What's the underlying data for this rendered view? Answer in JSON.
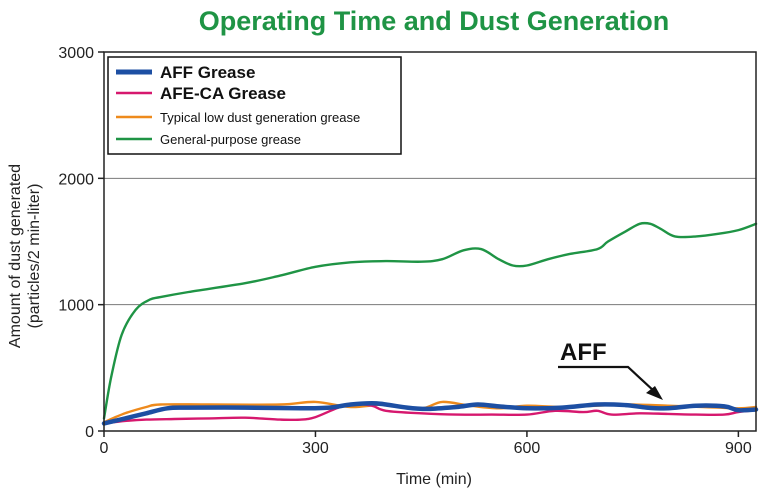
{
  "chart_data": {
    "type": "line",
    "title": "Operating Time and Dust Generation",
    "xlabel": "Time (min)",
    "ylabel_line1": "Amount of dust generated",
    "ylabel_line2": "(particles/2 min-liter)",
    "xlim": [
      0,
      925
    ],
    "ylim": [
      0,
      3000
    ],
    "xticks": [
      0,
      300,
      600,
      900
    ],
    "yticks": [
      0,
      1000,
      2000,
      3000
    ],
    "grid": "horizontal",
    "legend_position": "top-left",
    "annotation": {
      "text": "AFF",
      "x": 790,
      "y": 190
    },
    "series": [
      {
        "name": "General-purpose grease",
        "color": "#1f9445",
        "x": [
          0,
          10,
          25,
          45,
          65,
          80,
          120,
          200,
          250,
          300,
          350,
          400,
          450,
          480,
          510,
          535,
          560,
          580,
          600,
          630,
          660,
          700,
          715,
          740,
          760,
          775,
          790,
          810,
          840,
          870,
          900,
          925
        ],
        "y": [
          100,
          420,
          760,
          960,
          1040,
          1060,
          1100,
          1170,
          1230,
          1300,
          1335,
          1345,
          1340,
          1360,
          1430,
          1440,
          1360,
          1310,
          1310,
          1360,
          1400,
          1440,
          1500,
          1580,
          1640,
          1640,
          1600,
          1540,
          1540,
          1560,
          1590,
          1640
        ]
      },
      {
        "name": "Typical low dust generation grease",
        "color": "#ee8a1c",
        "x": [
          0,
          30,
          60,
          80,
          150,
          250,
          300,
          350,
          400,
          450,
          480,
          520,
          560,
          600,
          650,
          700,
          750,
          800,
          850,
          900,
          925
        ],
        "y": [
          70,
          140,
          190,
          210,
          210,
          210,
          230,
          190,
          210,
          180,
          230,
          200,
          180,
          200,
          190,
          200,
          210,
          200,
          190,
          180,
          190
        ]
      },
      {
        "name": "AFE-CA Grease",
        "color": "#d6186e",
        "x": [
          0,
          30,
          60,
          100,
          150,
          200,
          250,
          280,
          300,
          330,
          350,
          380,
          400,
          450,
          500,
          550,
          600,
          640,
          680,
          700,
          720,
          760,
          800,
          840,
          880,
          900,
          925
        ],
        "y": [
          60,
          80,
          90,
          95,
          100,
          105,
          90,
          90,
          110,
          180,
          215,
          200,
          160,
          140,
          130,
          130,
          130,
          160,
          150,
          160,
          130,
          140,
          135,
          130,
          130,
          150,
          165
        ]
      },
      {
        "name": "AFF Grease",
        "color": "#1d4fa3",
        "x": [
          0,
          30,
          60,
          90,
          120,
          200,
          280,
          320,
          350,
          380,
          400,
          430,
          460,
          500,
          530,
          560,
          600,
          650,
          700,
          740,
          770,
          800,
          840,
          880,
          900,
          925
        ],
        "y": [
          60,
          100,
          140,
          180,
          185,
          185,
          180,
          185,
          210,
          220,
          210,
          185,
          175,
          190,
          210,
          195,
          180,
          185,
          210,
          205,
          185,
          180,
          200,
          195,
          165,
          170
        ]
      }
    ],
    "legend": [
      {
        "label": "AFF Grease",
        "series": "AFF Grease",
        "style": "bold"
      },
      {
        "label": "AFE-CA Grease",
        "series": "AFE-CA Grease",
        "style": "bold"
      },
      {
        "label": "Typical low dust generation grease",
        "series": "Typical low dust generation grease",
        "style": "small"
      },
      {
        "label": "General-purpose grease",
        "series": "General-purpose grease",
        "style": "small"
      }
    ]
  }
}
